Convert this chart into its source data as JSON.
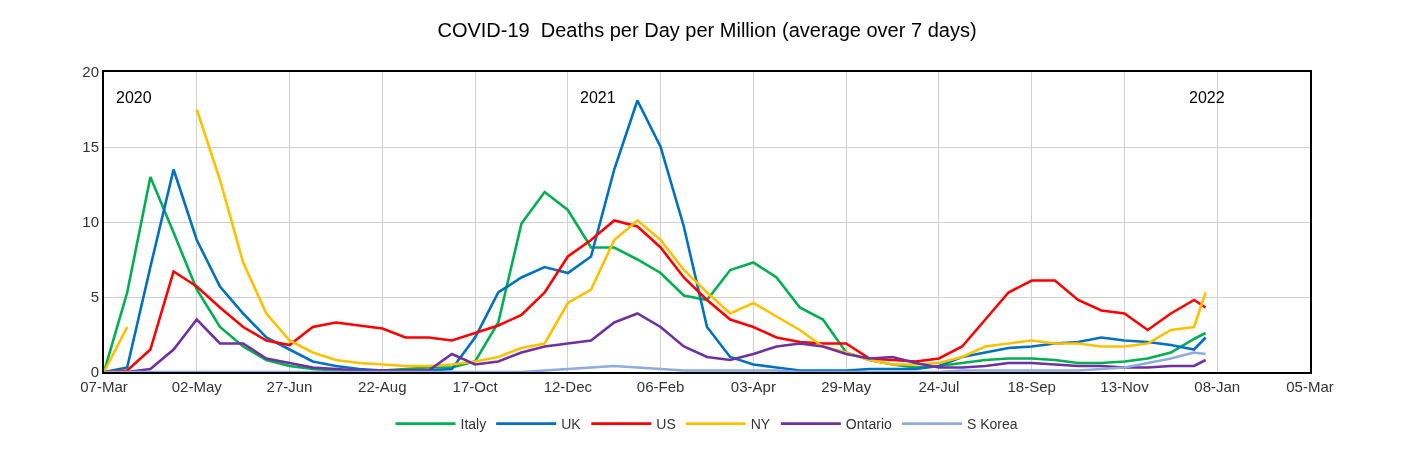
{
  "chart_data": {
    "type": "line",
    "title": "COVID-19  Deaths per Day per Million (average over 7 days)",
    "x": [
      "2020-03-07",
      "2020-03-21",
      "2020-04-04",
      "2020-04-18",
      "2020-05-02",
      "2020-05-16",
      "2020-05-30",
      "2020-06-13",
      "2020-06-27",
      "2020-07-11",
      "2020-07-25",
      "2020-08-08",
      "2020-08-22",
      "2020-09-05",
      "2020-09-19",
      "2020-10-03",
      "2020-10-17",
      "2020-10-31",
      "2020-11-14",
      "2020-11-28",
      "2020-12-12",
      "2020-12-26",
      "2021-01-09",
      "2021-01-23",
      "2021-02-06",
      "2021-02-20",
      "2021-03-06",
      "2021-03-20",
      "2021-04-03",
      "2021-04-17",
      "2021-05-01",
      "2021-05-15",
      "2021-05-29",
      "2021-06-12",
      "2021-06-26",
      "2021-07-10",
      "2021-07-24",
      "2021-08-07",
      "2021-08-21",
      "2021-09-04",
      "2021-09-18",
      "2021-10-02",
      "2021-10-16",
      "2021-10-30",
      "2021-11-13",
      "2021-11-27",
      "2021-12-11",
      "2021-12-25",
      "2022-01-01"
    ],
    "series": [
      {
        "name": "Italy",
        "color": "#00b050",
        "values": [
          0,
          5.3,
          13,
          9.3,
          5.5,
          3.0,
          1.7,
          0.8,
          0.4,
          0.2,
          0.1,
          0.1,
          0.1,
          0.2,
          0.3,
          0.3,
          0.7,
          3.3,
          9.9,
          12,
          10.8,
          8.3,
          8.3,
          7.5,
          6.6,
          5.1,
          4.8,
          6.8,
          7.3,
          6.3,
          4.3,
          3.5,
          1.3,
          0.8,
          0.5,
          0.3,
          0.4,
          0.6,
          0.8,
          0.9,
          0.9,
          0.8,
          0.6,
          0.6,
          0.7,
          0.9,
          1.3,
          2.2,
          2.6
        ]
      },
      {
        "name": "UK",
        "color": "#0070c0",
        "values": [
          0,
          0.3,
          7,
          13.5,
          8.8,
          5.7,
          3.9,
          2.3,
          1.5,
          0.7,
          0.4,
          0.2,
          0.1,
          0.1,
          0.1,
          0.2,
          2.3,
          5.3,
          6.3,
          7.0,
          6.6,
          7.7,
          13.5,
          18.1,
          15,
          9.7,
          3.0,
          1.0,
          0.5,
          0.3,
          0.1,
          0.1,
          0.1,
          0.2,
          0.2,
          0.2,
          0.4,
          1.0,
          1.3,
          1.6,
          1.7,
          1.9,
          2.0,
          2.3,
          2.1,
          2.0,
          1.8,
          1.5,
          2.3
        ]
      },
      {
        "name": "US",
        "color": "#ff0000",
        "values": [
          0,
          0.1,
          1.5,
          6.7,
          5.7,
          4.3,
          3.0,
          2.1,
          1.8,
          3.0,
          3.3,
          3.1,
          2.9,
          2.3,
          2.3,
          2.1,
          2.6,
          3.1,
          3.8,
          5.3,
          7.7,
          8.8,
          10.1,
          9.7,
          8.3,
          6.3,
          4.8,
          3.5,
          3.0,
          2.3,
          2.0,
          1.9,
          1.9,
          0.9,
          0.8,
          0.7,
          0.9,
          1.7,
          3.5,
          5.3,
          6.1,
          6.1,
          4.8,
          4.1,
          3.9,
          2.8,
          3.9,
          4.8,
          4.3
        ]
      },
      {
        "name": "NY",
        "color": "#ffc000",
        "values": [
          0,
          3,
          null,
          null,
          17.5,
          12.8,
          7.3,
          3.9,
          2.1,
          1.3,
          0.8,
          0.6,
          0.5,
          0.4,
          0.4,
          0.5,
          0.7,
          1.0,
          1.6,
          1.9,
          4.6,
          5.5,
          8.8,
          10.1,
          8.8,
          6.8,
          5.3,
          3.9,
          4.6,
          3.7,
          2.8,
          1.7,
          1.3,
          0.8,
          0.5,
          0.5,
          0.6,
          1.0,
          1.7,
          1.9,
          2.1,
          1.9,
          1.9,
          1.7,
          1.7,
          1.9,
          2.8,
          3.0,
          5.3
        ]
      },
      {
        "name": "Ontario",
        "color": "#7030a0",
        "values": [
          0,
          0,
          0.2,
          1.5,
          3.5,
          1.9,
          1.9,
          0.9,
          0.6,
          0.3,
          0.2,
          0.1,
          0.1,
          0.1,
          0.1,
          1.2,
          0.5,
          0.7,
          1.3,
          1.7,
          1.9,
          2.1,
          3.3,
          3.9,
          3.0,
          1.7,
          1.0,
          0.8,
          1.2,
          1.7,
          1.9,
          1.7,
          1.2,
          0.9,
          1.0,
          0.6,
          0.3,
          0.3,
          0.4,
          0.6,
          0.6,
          0.5,
          0.4,
          0.4,
          0.3,
          0.3,
          0.4,
          0.4,
          0.8
        ]
      },
      {
        "name": "S Korea",
        "color": "#8faadc",
        "values": [
          0,
          0,
          0,
          0,
          0,
          0,
          0,
          0,
          0,
          0,
          0,
          0,
          0,
          0,
          0,
          0,
          0,
          0,
          0,
          0.1,
          0.2,
          0.3,
          0.4,
          0.3,
          0.2,
          0.1,
          0.1,
          0.1,
          0.1,
          0.1,
          0,
          0,
          0,
          0,
          0,
          0,
          0,
          0.1,
          0.1,
          0.1,
          0.1,
          0.1,
          0.1,
          0.2,
          0.3,
          0.6,
          0.9,
          1.3,
          1.2
        ]
      }
    ],
    "xlim": [
      "2020-03-07",
      "2022-03-05"
    ],
    "xticks": [
      {
        "value": "2020-03-07",
        "label": "07-Mar"
      },
      {
        "value": "2020-05-02",
        "label": "02-May"
      },
      {
        "value": "2020-06-27",
        "label": "27-Jun"
      },
      {
        "value": "2020-08-22",
        "label": "22-Aug"
      },
      {
        "value": "2020-10-17",
        "label": "17-Oct"
      },
      {
        "value": "2020-12-12",
        "label": "12-Dec"
      },
      {
        "value": "2021-02-06",
        "label": "06-Feb"
      },
      {
        "value": "2021-04-03",
        "label": "03-Apr"
      },
      {
        "value": "2021-05-29",
        "label": "29-May"
      },
      {
        "value": "2021-07-24",
        "label": "24-Jul"
      },
      {
        "value": "2021-09-18",
        "label": "18-Sep"
      },
      {
        "value": "2021-11-13",
        "label": "13-Nov"
      },
      {
        "value": "2022-01-08",
        "label": "08-Jan"
      },
      {
        "value": "2022-03-05",
        "label": "05-Mar"
      }
    ],
    "ylim": [
      0,
      20
    ],
    "yticks": [
      0,
      5,
      10,
      15,
      20
    ],
    "annotations": [
      "2020",
      "2021",
      "2022"
    ],
    "grid": true,
    "legend": "bottom",
    "marker": "none",
    "line_style": "solid"
  }
}
